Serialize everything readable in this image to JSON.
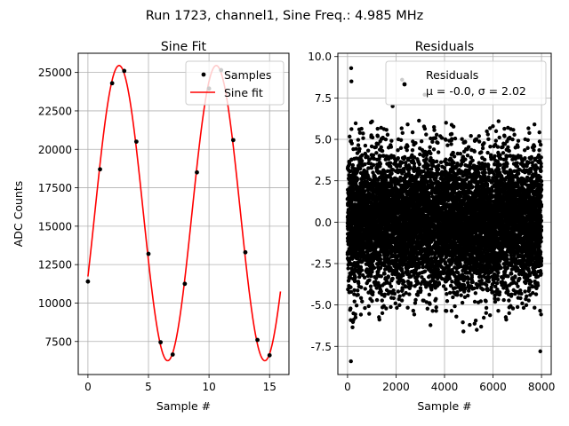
{
  "figure_title": "Run 1723, channel1, Sine Freq.: 4.985 MHz",
  "chart_data": [
    {
      "type": "line",
      "title": "Sine Fit",
      "xlabel": "Sample #",
      "ylabel": "ADC Counts",
      "xlim": [
        -0.8,
        16.6
      ],
      "ylim": [
        5350,
        26250
      ],
      "xticks": [
        0,
        5,
        10,
        15
      ],
      "yticks": [
        7500,
        10000,
        12500,
        15000,
        17500,
        20000,
        22500,
        25000
      ],
      "grid": true,
      "legend_position": "upper right",
      "series": [
        {
          "name": "Samples",
          "style": "markers",
          "color": "#000000",
          "x": [
            0,
            1,
            2,
            3,
            4,
            5,
            6,
            7,
            8,
            9,
            10,
            11,
            12,
            13,
            14,
            15
          ],
          "y": [
            11400,
            18700,
            24300,
            25100,
            20500,
            13200,
            7450,
            6650,
            11250,
            18500,
            23950,
            25150,
            20600,
            13300,
            7600,
            6600
          ]
        },
        {
          "name": "Sine fit",
          "style": "line",
          "color": "#ff0000",
          "function": "sine",
          "offset": 15850,
          "amplitude": 9600,
          "period_samples": 8.024,
          "phase_rad": -0.444,
          "x_range": [
            0,
            15.9
          ]
        }
      ]
    },
    {
      "type": "scatter",
      "title": "Residuals",
      "xlabel": "Sample #",
      "ylabel": "",
      "xlim": [
        -400,
        8400
      ],
      "ylim": [
        -9.2,
        10.2
      ],
      "xticks": [
        0,
        2000,
        4000,
        6000,
        8000
      ],
      "yticks": [
        -7.5,
        -5.0,
        -2.5,
        0.0,
        2.5,
        5.0,
        7.5,
        10.0
      ],
      "grid": true,
      "legend_position": "upper right",
      "series": [
        {
          "name": "Residuals",
          "legend_line2": "μ = -0.0, σ = 2.02",
          "color": "#000000",
          "n_points": 8000,
          "x_range": [
            0,
            7999
          ],
          "mean": 0.0,
          "std": 2.02,
          "outliers": [
            {
              "x": 150,
              "y": 9.3
            },
            {
              "x": 160,
              "y": 8.5
            },
            {
              "x": 140,
              "y": -8.4
            },
            {
              "x": 2250,
              "y": 8.6
            },
            {
              "x": 3180,
              "y": 7.7
            },
            {
              "x": 7950,
              "y": -7.8
            },
            {
              "x": 4780,
              "y": -6.6
            },
            {
              "x": 5330,
              "y": -6.5
            },
            {
              "x": 1860,
              "y": 7.0
            }
          ]
        }
      ]
    }
  ]
}
